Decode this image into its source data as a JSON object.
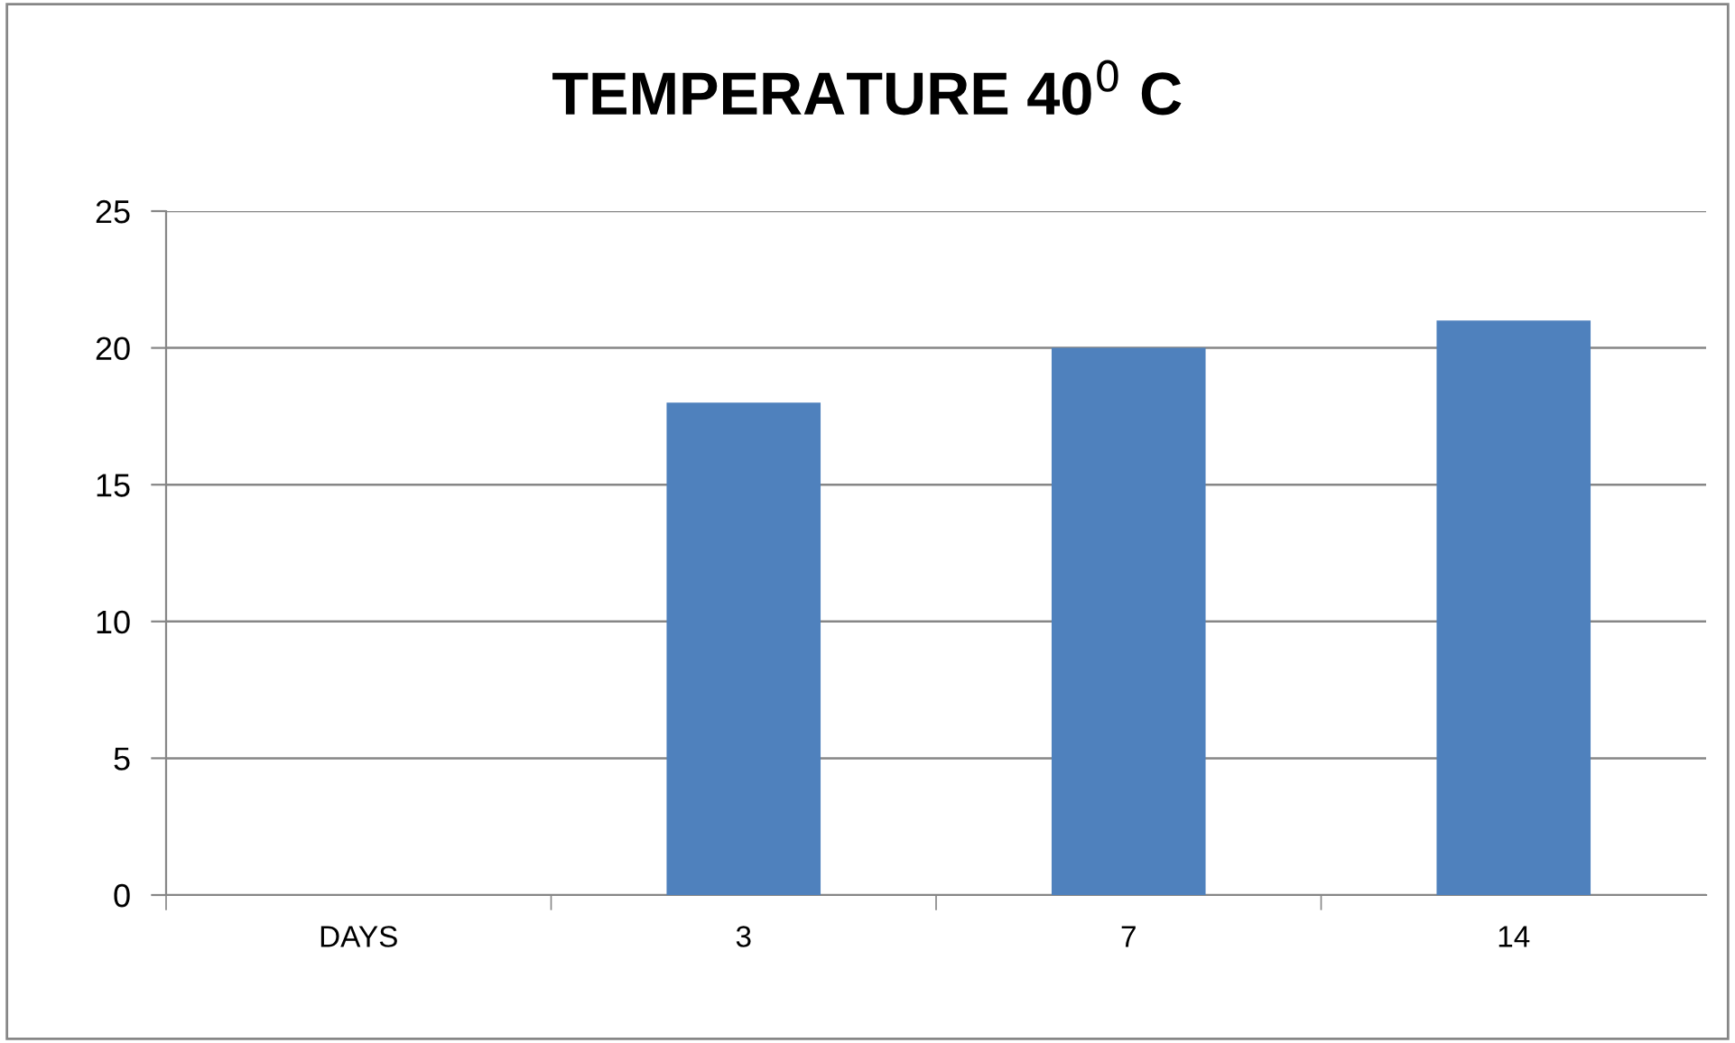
{
  "chart_data": {
    "type": "bar",
    "title": "TEMPERATURE 40$^{0}$ C",
    "categories": [
      "DAYS",
      "3",
      "7",
      "14"
    ],
    "values": [
      null,
      18,
      20,
      21
    ],
    "color": "#4f81bd",
    "ylim": [
      0,
      25
    ],
    "yticks": [
      0,
      5,
      10,
      15,
      20,
      25
    ],
    "grid": "y",
    "legend": false
  }
}
